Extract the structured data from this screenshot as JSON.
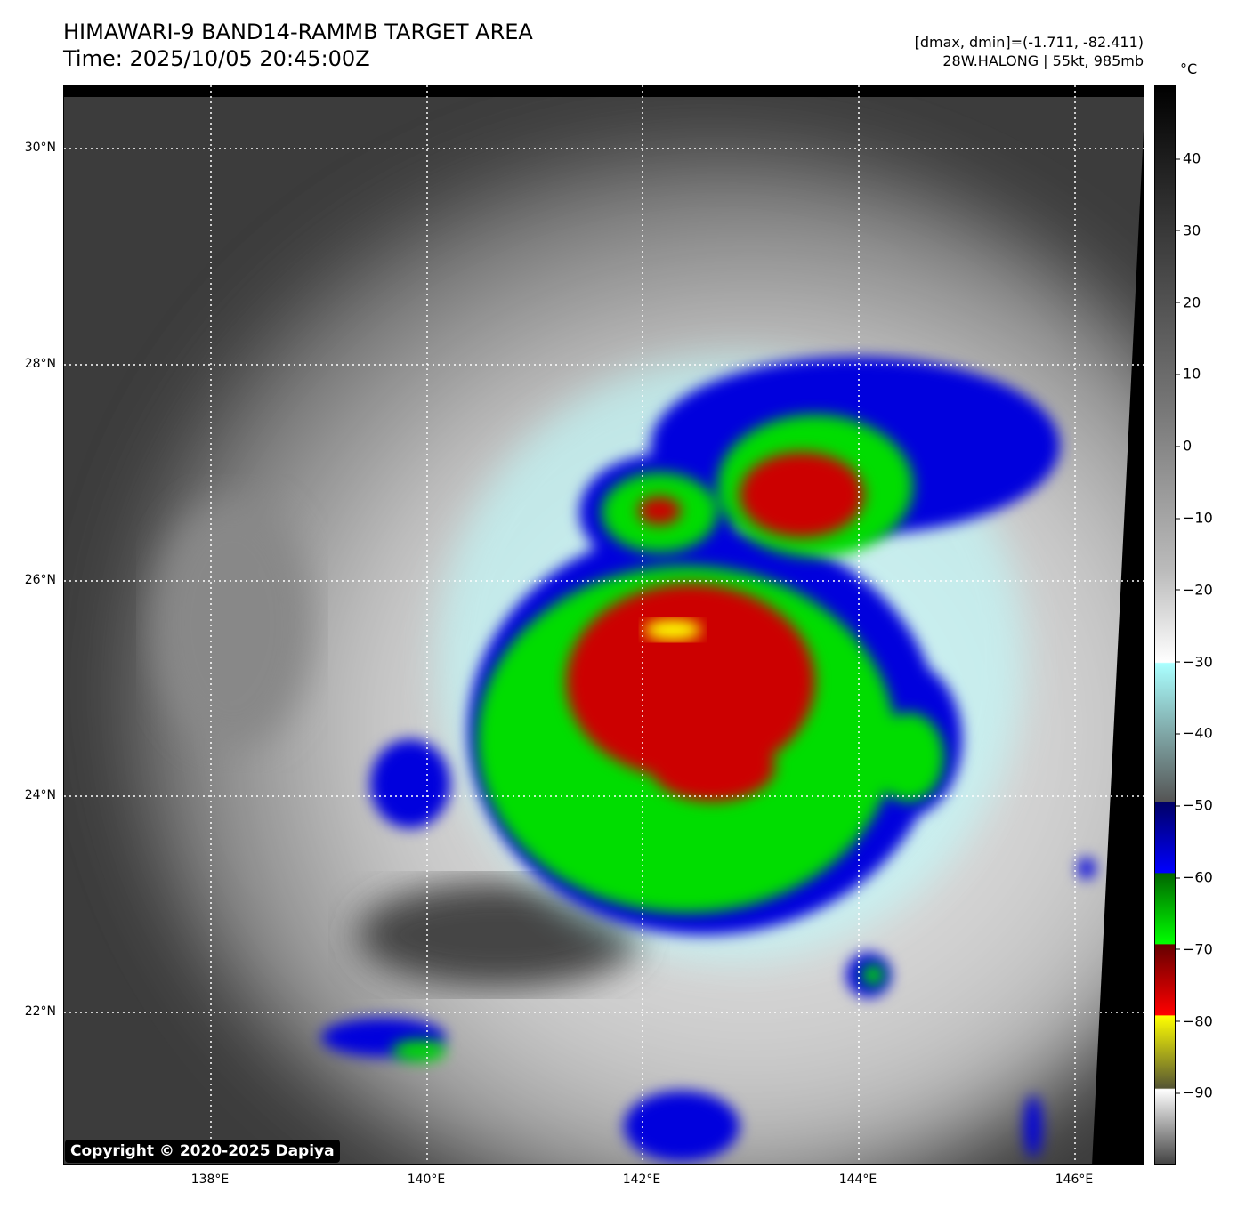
{
  "header": {
    "title": "HIMAWARI-9 BAND14-RAMMB TARGET AREA",
    "time": "Time: 2025/10/05 20:45:00Z",
    "range": "[dmax, dmin]=(-1.711, -82.411)",
    "storm": "28W.HALONG | 55kt, 985mb"
  },
  "map": {
    "lat_labels": [
      "30°N",
      "28°N",
      "26°N",
      "24°N",
      "22°N"
    ],
    "lon_labels": [
      "138°E",
      "140°E",
      "142°E",
      "144°E",
      "146°E"
    ],
    "copyright": "Copyright © 2020-2025 Dapiya"
  },
  "colorbar": {
    "unit": "°C",
    "ticks": [
      "40",
      "30",
      "20",
      "10",
      "0",
      "−10",
      "−20",
      "−30",
      "−40",
      "−50",
      "−60",
      "−70",
      "−80",
      "−90"
    ],
    "colors": {
      "cold_blue": "#0000ff",
      "green": "#00ff00",
      "red": "#ff0000",
      "yellow": "#ffff00",
      "cyan": "#aaffff"
    }
  }
}
